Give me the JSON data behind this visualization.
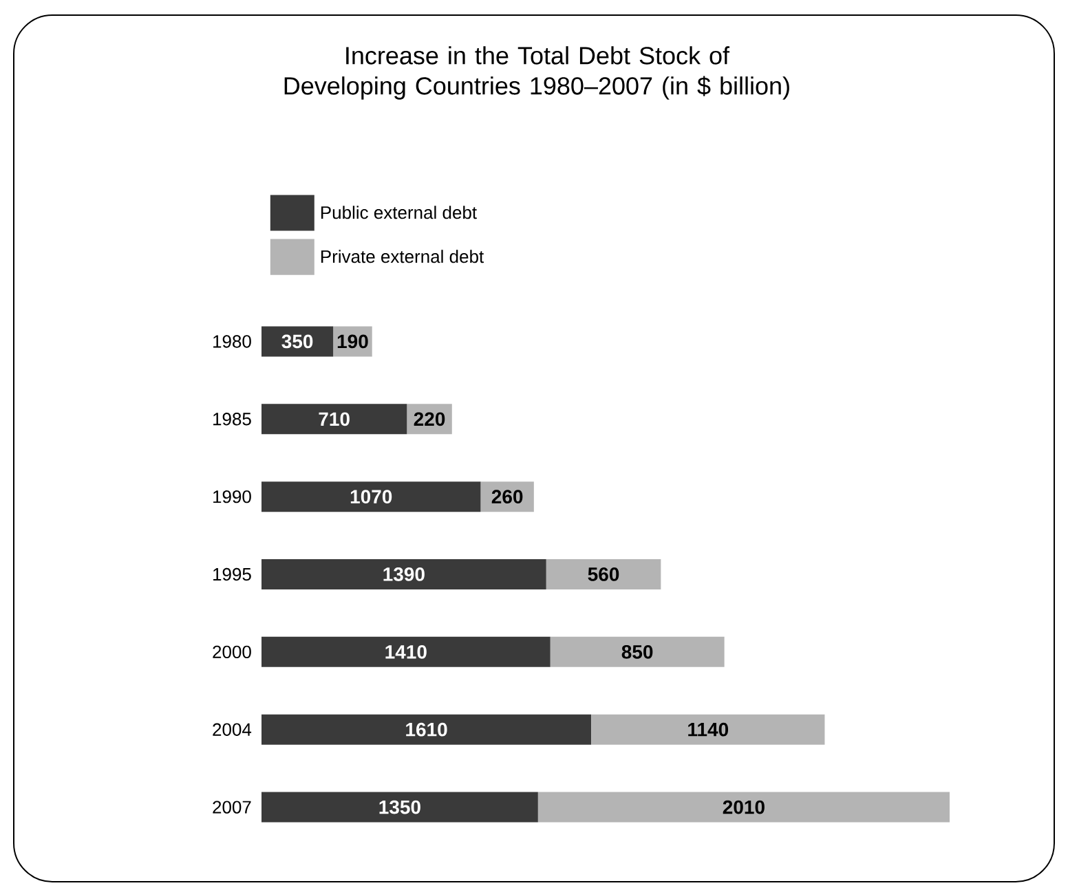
{
  "chart_data": {
    "type": "bar",
    "orientation": "horizontal",
    "stacked": true,
    "data_labels": true,
    "legend": "top left",
    "tick_labels": "y",
    "title": "Increase in the Total Debt Stock of Developing Countries 1980–2007 (in $ billion)",
    "categories": [
      "1980",
      "1985",
      "1990",
      "1995",
      "2000",
      "2004",
      "2007"
    ],
    "series": [
      {
        "name": "Public external debt",
        "color": "#3a3a3a",
        "values": [
          350,
          710,
          1070,
          1390,
          1410,
          1610,
          1350
        ]
      },
      {
        "name": "Private external debt",
        "color": "#b4b4b4",
        "values": [
          190,
          220,
          260,
          560,
          850,
          1140,
          2010
        ]
      }
    ]
  }
}
